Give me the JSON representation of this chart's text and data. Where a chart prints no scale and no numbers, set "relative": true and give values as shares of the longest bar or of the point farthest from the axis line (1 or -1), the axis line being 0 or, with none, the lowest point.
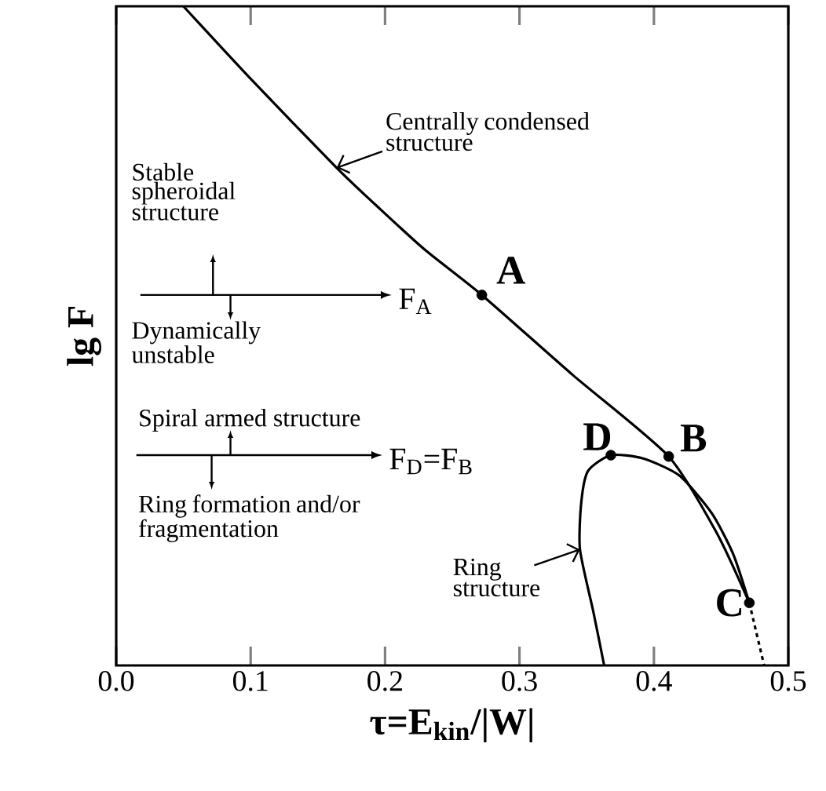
{
  "chart_data": {
    "type": "line",
    "relative": true,
    "xlabel": "τ=E$_{kin}$/|W|",
    "ylabel": "lg F",
    "xlim": [
      0,
      0.5
    ],
    "xticks": [
      {
        "value": 0,
        "label": "0.0"
      },
      0.1,
      0.2,
      0.3,
      0.4,
      0.5
    ],
    "grid": false,
    "series": [
      {
        "color": "#000000",
        "line_style": "solid",
        "marker": "none",
        "x": [
          0.05,
          0.1,
          0.164,
          0.196,
          0.23,
          0.272,
          0.34,
          0.411,
          0.447,
          0.471
        ],
        "values": [
          1.0,
          0.89,
          0.755,
          0.693,
          0.63,
          0.562,
          0.44,
          0.317,
          0.2,
          0.095
        ]
      },
      {
        "color": "#000000",
        "line_style": "dotted",
        "marker": "none",
        "x": [
          0.471,
          0.482
        ],
        "values": [
          0.095,
          0
        ]
      },
      {
        "color": "#000000",
        "line_style": "solid",
        "marker": "none",
        "x": [
          0.363,
          0.355,
          0.345,
          0.346,
          0.351,
          0.368,
          0.392,
          0.419,
          0.443,
          0.459,
          0.471
        ],
        "values": [
          0,
          0.081,
          0.176,
          0.248,
          0.295,
          0.319,
          0.314,
          0.288,
          0.231,
          0.169,
          0.095
        ]
      },
      {
        "type": "scatter",
        "color": "#000000",
        "marker": "circle",
        "x": [
          0.272,
          0.411,
          0.471,
          0.368
        ],
        "values": [
          0.562,
          0.317,
          0.095,
          0.319
        ]
      }
    ],
    "annotations": [
      {
        "text": "Centrally condensed structure",
        "x": 0.164,
        "y": 0.755
      },
      "Stable spheroidal structure",
      "F$_{A}$",
      "Dynamically unstable",
      "Spiral armed structure",
      "F$_{D}$=F$_{B}$",
      "Ring formation and/or fragmentation",
      {
        "text": "Ring structure",
        "x": 0.345,
        "y": 0.176
      },
      {
        "text": "A",
        "x": 0.272,
        "y": 0.562
      },
      {
        "text": "B",
        "x": 0.411,
        "y": 0.317
      },
      {
        "text": "C",
        "x": 0.471,
        "y": 0.095
      },
      {
        "text": "D",
        "x": 0.368,
        "y": 0.319
      }
    ]
  }
}
